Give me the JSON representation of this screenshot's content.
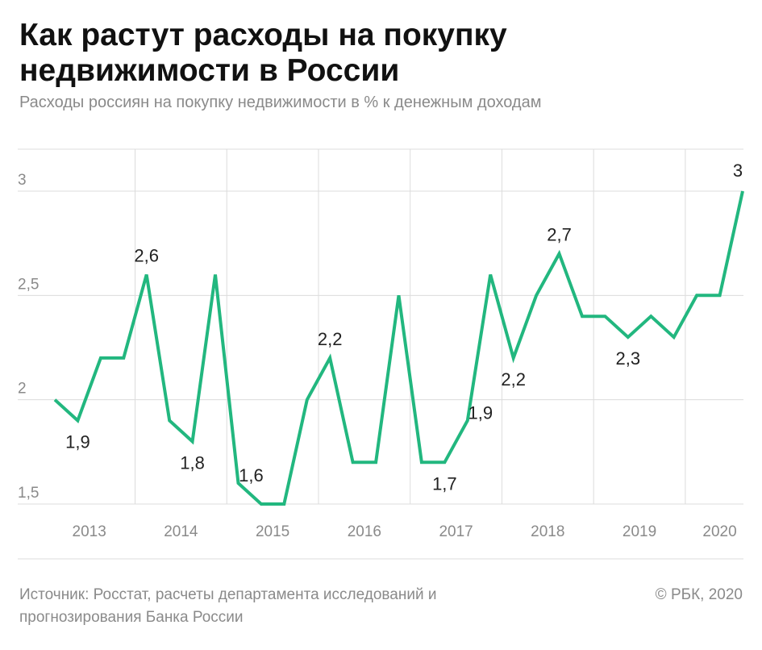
{
  "title": "Как растут расходы на покупку недвижимости в России",
  "subtitle": "Расходы россиян на покупку недвижимости в % к денежным доходам",
  "source": "Источник: Росстат, расчеты департамента исследований и прогнозирования Банка России",
  "copyright": "© РБК, 2020",
  "colors": {
    "line": "#22b77f",
    "grid": "#dcdcdc",
    "axis_text": "#8a8a8a",
    "label_text": "#222222"
  },
  "chart_data": {
    "type": "line",
    "title": "Как растут расходы на покупку недвижимости в России",
    "ylabel": "",
    "xlabel": "",
    "ylim": [
      1.5,
      3
    ],
    "yticks": [
      1.5,
      2,
      2.5,
      3
    ],
    "ytick_labels": [
      "1,5",
      "2",
      "2,5",
      "3"
    ],
    "grid": true,
    "year_labels": [
      "2013",
      "2014",
      "2015",
      "2016",
      "2017",
      "2018",
      "2019",
      "2020"
    ],
    "year_boundaries": [
      "2013/2014",
      "2014/2015",
      "2015/2016",
      "2016/2017",
      "2017/2018",
      "2018/2019",
      "2019/2020"
    ],
    "series": [
      {
        "name": "",
        "values": [
          2.0,
          1.9,
          2.2,
          2.2,
          2.6,
          1.9,
          1.8,
          2.6,
          1.6,
          1.5,
          1.5,
          2.0,
          2.2,
          1.7,
          1.7,
          2.5,
          1.7,
          1.7,
          1.9,
          2.6,
          2.2,
          2.5,
          2.7,
          2.4,
          2.4,
          2.3,
          2.4,
          2.3,
          2.5,
          2.5,
          3.0
        ]
      }
    ],
    "annotations": [
      {
        "index": 1,
        "text": "1,9",
        "pos": "below"
      },
      {
        "index": 4,
        "text": "2,6",
        "pos": "above"
      },
      {
        "index": 6,
        "text": "1,8",
        "pos": "below"
      },
      {
        "index": 8,
        "text": "1,6",
        "pos": "right"
      },
      {
        "index": 12,
        "text": "2,2",
        "pos": "above"
      },
      {
        "index": 17,
        "text": "1,7",
        "pos": "below"
      },
      {
        "index": 18,
        "text": "1,9",
        "pos": "right"
      },
      {
        "index": 20,
        "text": "2,2",
        "pos": "below"
      },
      {
        "index": 22,
        "text": "2,7",
        "pos": "above"
      },
      {
        "index": 25,
        "text": "2,3",
        "pos": "below"
      },
      {
        "index": 30,
        "text": "3",
        "pos": "above"
      }
    ]
  }
}
